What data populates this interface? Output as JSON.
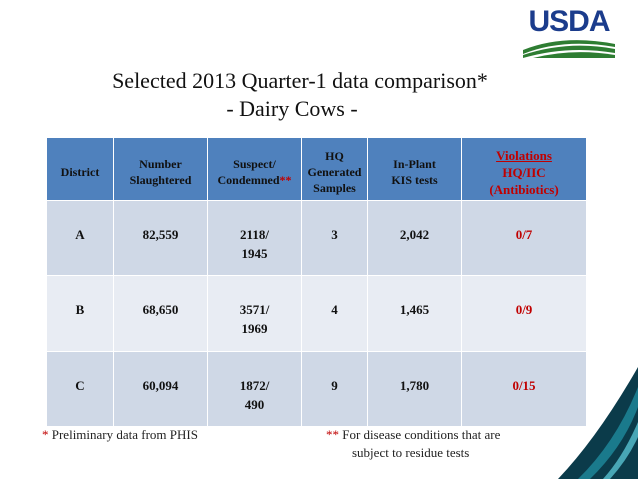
{
  "logo": {
    "text": "USDA"
  },
  "title": {
    "line1": "Selected 2013 Quarter-1 data comparison*",
    "line2": "- Dairy Cows -"
  },
  "table": {
    "headers": {
      "district": "District",
      "number": [
        "Number",
        "Slaughtered"
      ],
      "suspect": [
        "Suspect/",
        "Condemned"
      ],
      "suspect_mark": "**",
      "hq": [
        "HQ",
        "Generated",
        "Samples"
      ],
      "inplant": [
        "In-Plant",
        "KIS tests"
      ],
      "violations": [
        "Violations",
        "HQ/IIC",
        "(Antibiotics)"
      ]
    },
    "rows": [
      {
        "district": "A",
        "slaughtered": "82,559",
        "suspect": "2118/",
        "condemned": "1945",
        "hq": "3",
        "kis": "2,042",
        "violations": "0/7"
      },
      {
        "district": "B",
        "slaughtered": "68,650",
        "suspect": "3571/",
        "condemned": "1969",
        "hq": "4",
        "kis": "1,465",
        "violations": "0/9"
      },
      {
        "district": "C",
        "slaughtered": "60,094",
        "suspect": "1872/",
        "condemned": "490",
        "hq": "9",
        "kis": "1,780",
        "violations": "0/15"
      }
    ]
  },
  "footnotes": {
    "f1_mark": "*",
    "f1_text": " Preliminary data from PHIS",
    "f2_mark": "**",
    "f2_text_line1": " For disease conditions that are",
    "f2_text_line2": "subject to residue tests"
  },
  "colors": {
    "header_bg": "#4f81bd",
    "row_dark": "#cfd8e6",
    "row_light": "#e8ecf3",
    "accent_red": "#c00000",
    "logo_blue": "#1b3c8c",
    "logo_green": "#2e7d32",
    "corner_dark": "#0b3b4a",
    "corner_teal": "#1a7a8c"
  }
}
